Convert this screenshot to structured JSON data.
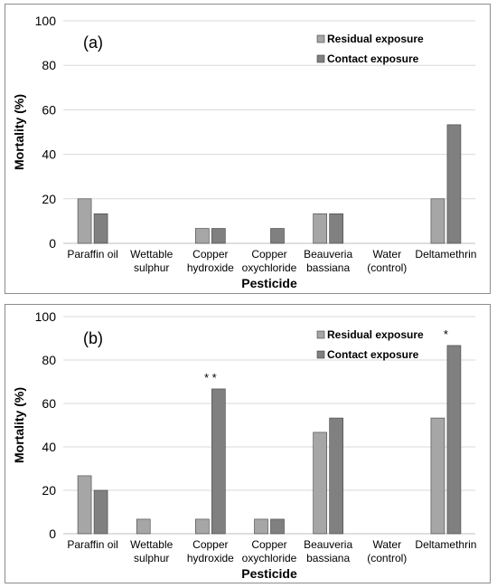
{
  "chart_data": [
    {
      "type": "bar",
      "panel_label": "(a)",
      "ylabel": "Mortality (%)",
      "xlabel": "Pesticide",
      "ylim": [
        0,
        100
      ],
      "yticks": [
        "0",
        "20",
        "40",
        "60",
        "80",
        "100"
      ],
      "grid": true,
      "legend_position": "top-right",
      "categories": [
        [
          "Paraffin oil"
        ],
        [
          "Wettable",
          "sulphur"
        ],
        [
          "Copper",
          "hydroxide"
        ],
        [
          "Copper",
          "oxychloride"
        ],
        [
          "Beauveria",
          "bassiana"
        ],
        [
          "Water",
          "(control)"
        ],
        [
          "Deltamethrin"
        ]
      ],
      "series": [
        {
          "name": "Residual exposure",
          "color": "#a6a6a6",
          "values": [
            20,
            0,
            6.7,
            0,
            13.3,
            0,
            20
          ]
        },
        {
          "name": "Contact exposure",
          "color": "#808080",
          "values": [
            13.3,
            0,
            6.7,
            6.7,
            13.3,
            0,
            53.3
          ]
        }
      ],
      "annotations": []
    },
    {
      "type": "bar",
      "panel_label": "(b)",
      "ylabel": "Mortality (%)",
      "xlabel": "Pesticide",
      "ylim": [
        0,
        100
      ],
      "yticks": [
        "0",
        "20",
        "40",
        "60",
        "80",
        "100"
      ],
      "grid": true,
      "legend_position": "top-right",
      "categories": [
        [
          "Paraffin oil"
        ],
        [
          "Wettable",
          "sulphur"
        ],
        [
          "Copper",
          "hydroxide"
        ],
        [
          "Copper",
          "oxychloride"
        ],
        [
          "Beauveria",
          "bassiana"
        ],
        [
          "Water",
          "(control)"
        ],
        [
          "Deltamethrin"
        ]
      ],
      "series": [
        {
          "name": "Residual exposure",
          "color": "#a6a6a6",
          "values": [
            26.7,
            6.7,
            6.7,
            6.7,
            46.7,
            0,
            53.3
          ]
        },
        {
          "name": "Contact exposure",
          "color": "#808080",
          "values": [
            20,
            0,
            66.7,
            6.7,
            53.3,
            0,
            86.7
          ]
        }
      ],
      "annotations": [
        {
          "category_index": 2,
          "text": "* *"
        },
        {
          "category_index": 6,
          "text": "*"
        }
      ]
    }
  ]
}
